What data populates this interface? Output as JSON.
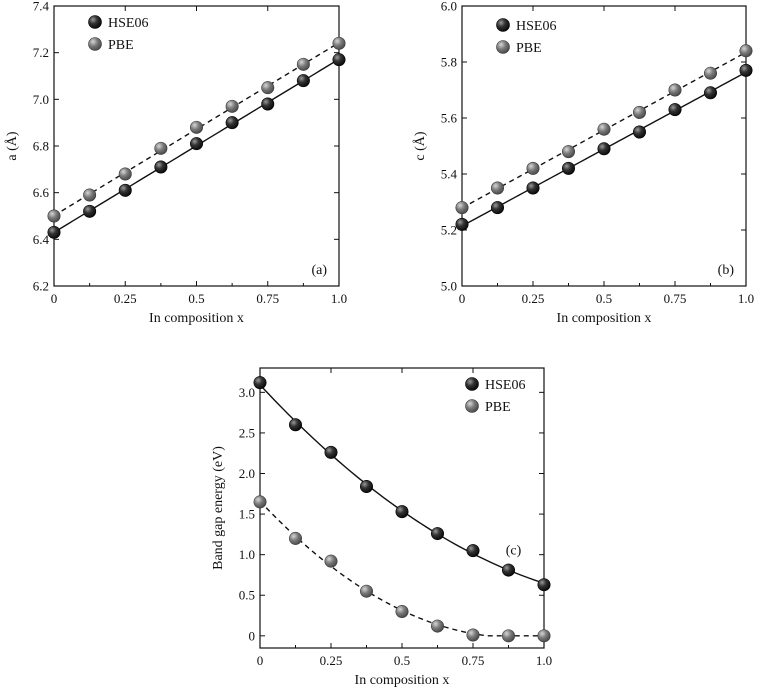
{
  "legend": {
    "series_a": "HSE06",
    "series_b": "PBE"
  },
  "colors": {
    "series_a": "#1c1c1c",
    "series_b": "#6f6f6f",
    "axis": "#111111"
  },
  "chart_data": [
    {
      "type": "scatter",
      "panel_label": "(a)",
      "xlabel": "In composition x",
      "ylabel": "a (Å)",
      "xlim": [
        0,
        1
      ],
      "ylim": [
        6.2,
        7.4
      ],
      "xticks": [
        "0",
        "0.25",
        "0.5",
        "0.75",
        "1.0"
      ],
      "yticks": [
        "6.2",
        "6.4",
        "6.6",
        "6.8",
        "7.0",
        "7.2",
        "7.4"
      ],
      "legend_position": "top-left",
      "series": [
        {
          "name": "HSE06",
          "fit": "solid",
          "x": [
            0,
            0.125,
            0.25,
            0.375,
            0.5,
            0.625,
            0.75,
            0.875,
            1.0
          ],
          "y": [
            6.43,
            6.52,
            6.61,
            6.71,
            6.81,
            6.9,
            6.98,
            7.08,
            7.17
          ]
        },
        {
          "name": "PBE",
          "fit": "dashed",
          "x": [
            0,
            0.125,
            0.25,
            0.375,
            0.5,
            0.625,
            0.75,
            0.875,
            1.0
          ],
          "y": [
            6.5,
            6.59,
            6.68,
            6.79,
            6.88,
            6.97,
            7.05,
            7.15,
            7.24
          ]
        }
      ]
    },
    {
      "type": "scatter",
      "panel_label": "(b)",
      "xlabel": "In composition x",
      "ylabel": "c (Å)",
      "xlim": [
        0,
        1
      ],
      "ylim": [
        5.0,
        6.0
      ],
      "xticks": [
        "0",
        "0.25",
        "0.5",
        "0.75",
        "1.0"
      ],
      "yticks": [
        "5.0",
        "5.2",
        "5.4",
        "5.6",
        "5.8",
        "6.0"
      ],
      "legend_position": "top-left",
      "series": [
        {
          "name": "HSE06",
          "fit": "solid",
          "x": [
            0,
            0.125,
            0.25,
            0.375,
            0.5,
            0.625,
            0.75,
            0.875,
            1.0
          ],
          "y": [
            5.22,
            5.28,
            5.35,
            5.42,
            5.49,
            5.55,
            5.63,
            5.69,
            5.77
          ]
        },
        {
          "name": "PBE",
          "fit": "dashed",
          "x": [
            0,
            0.125,
            0.25,
            0.375,
            0.5,
            0.625,
            0.75,
            0.875,
            1.0
          ],
          "y": [
            5.28,
            5.35,
            5.42,
            5.48,
            5.56,
            5.62,
            5.7,
            5.76,
            5.84
          ]
        }
      ]
    },
    {
      "type": "scatter",
      "panel_label": "(c)",
      "xlabel": "In composition x",
      "ylabel": "Band gap energy (eV)",
      "xlim": [
        0,
        1
      ],
      "ylim": [
        -0.15,
        3.3
      ],
      "xticks": [
        "0",
        "0.25",
        "0.5",
        "0.75",
        "1.0"
      ],
      "yticks": [
        "0",
        "0.5",
        "1.0",
        "1.5",
        "2.0",
        "2.5",
        "3.0"
      ],
      "legend_position": "top-right",
      "series": [
        {
          "name": "HSE06",
          "fit": "solid",
          "x": [
            0,
            0.125,
            0.25,
            0.375,
            0.5,
            0.625,
            0.75,
            0.875,
            1.0
          ],
          "y": [
            3.12,
            2.6,
            2.26,
            1.84,
            1.53,
            1.26,
            1.05,
            0.81,
            0.63
          ]
        },
        {
          "name": "PBE",
          "fit": "dashed",
          "x": [
            0,
            0.125,
            0.25,
            0.375,
            0.5,
            0.625,
            0.75,
            0.875,
            1.0
          ],
          "y": [
            1.65,
            1.2,
            0.92,
            0.55,
            0.3,
            0.12,
            0.01,
            0.0,
            0.0
          ]
        }
      ]
    }
  ]
}
